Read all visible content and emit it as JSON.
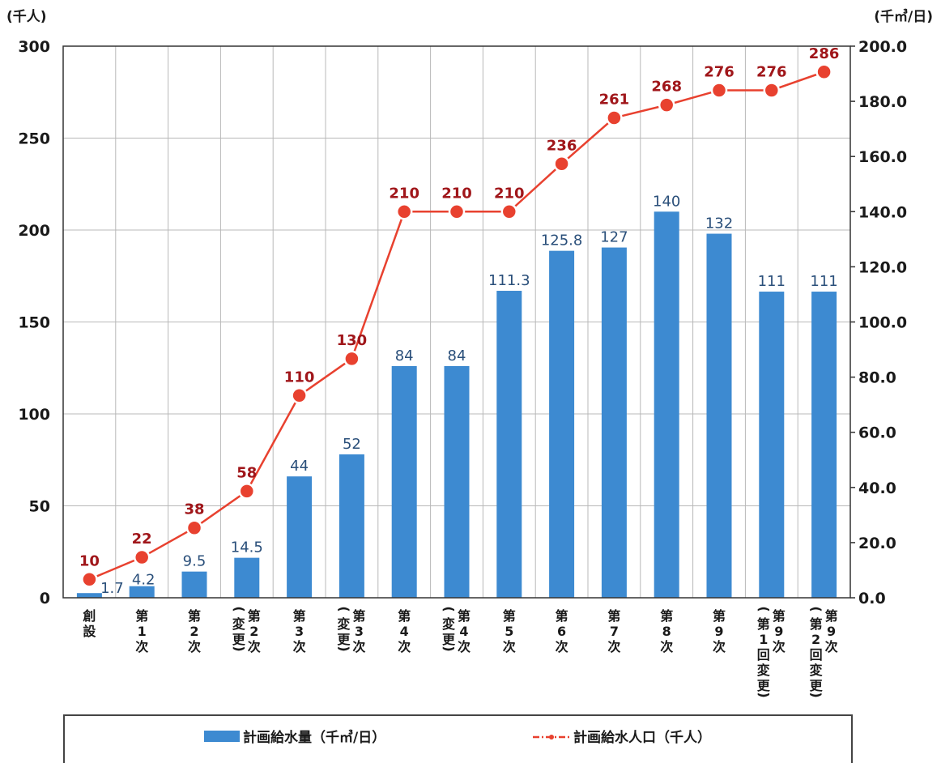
{
  "chart_data": {
    "type": "bar+line",
    "categories": [
      [
        "創",
        "設"
      ],
      [
        "第",
        "1",
        "次"
      ],
      [
        "第",
        "2",
        "次"
      ],
      [
        "第",
        "2",
        "次",
        "(変更)"
      ],
      [
        "第",
        "3",
        "次"
      ],
      [
        "第",
        "3",
        "次",
        "(変更)"
      ],
      [
        "第",
        "4",
        "次"
      ],
      [
        "第",
        "4",
        "次",
        "(変更)"
      ],
      [
        "第",
        "5",
        "次"
      ],
      [
        "第",
        "6",
        "次"
      ],
      [
        "第",
        "7",
        "次"
      ],
      [
        "第",
        "8",
        "次"
      ],
      [
        "第",
        "9",
        "次"
      ],
      [
        "第",
        "9",
        "次",
        "(第1回変更)"
      ],
      [
        "第",
        "9",
        "次",
        "(第2回変更)"
      ]
    ],
    "series": [
      {
        "name": "計画給水量（千㎥/日）",
        "type": "bar",
        "axis": "right",
        "values": [
          1.7,
          4.2,
          9.5,
          14.5,
          44,
          52,
          84,
          84,
          111.3,
          125.8,
          127,
          140,
          132,
          111,
          111
        ],
        "labels": [
          "1.7",
          "4.2",
          "9.5",
          "14.5",
          "44",
          "52",
          "84",
          "84",
          "111.3",
          "125.8",
          "127",
          "140",
          "132",
          "111",
          "111"
        ],
        "color": "#3d8ad1"
      },
      {
        "name": "計画給水人口（千人）",
        "type": "line",
        "axis": "left",
        "values": [
          10,
          22,
          38,
          58,
          110,
          130,
          210,
          210,
          210,
          236,
          261,
          268,
          276,
          276,
          286
        ],
        "labels": [
          "10",
          "22",
          "38",
          "58",
          "110",
          "130",
          "210",
          "210",
          "210",
          "236",
          "261",
          "268",
          "276",
          "276",
          "286"
        ],
        "color": "#e8412f",
        "label_color": "#a0161a"
      }
    ],
    "left_axis": {
      "unit": "(千人)",
      "ylim": [
        0,
        300
      ],
      "ticks": [
        "0",
        "50",
        "100",
        "150",
        "200",
        "250",
        "300"
      ]
    },
    "right_axis": {
      "unit": "(千㎥/日)",
      "ylim": [
        0,
        200
      ],
      "ticks": [
        "0.0",
        "20.0",
        "40.0",
        "60.0",
        "80.0",
        "100.0",
        "120.0",
        "140.0",
        "160.0",
        "180.0",
        "200.0"
      ]
    },
    "grid": true,
    "legend_position": "bottom",
    "legend": {
      "bar_label": "計画給水量（千㎥/日）",
      "line_label": "計画給水人口（千人）"
    }
  }
}
